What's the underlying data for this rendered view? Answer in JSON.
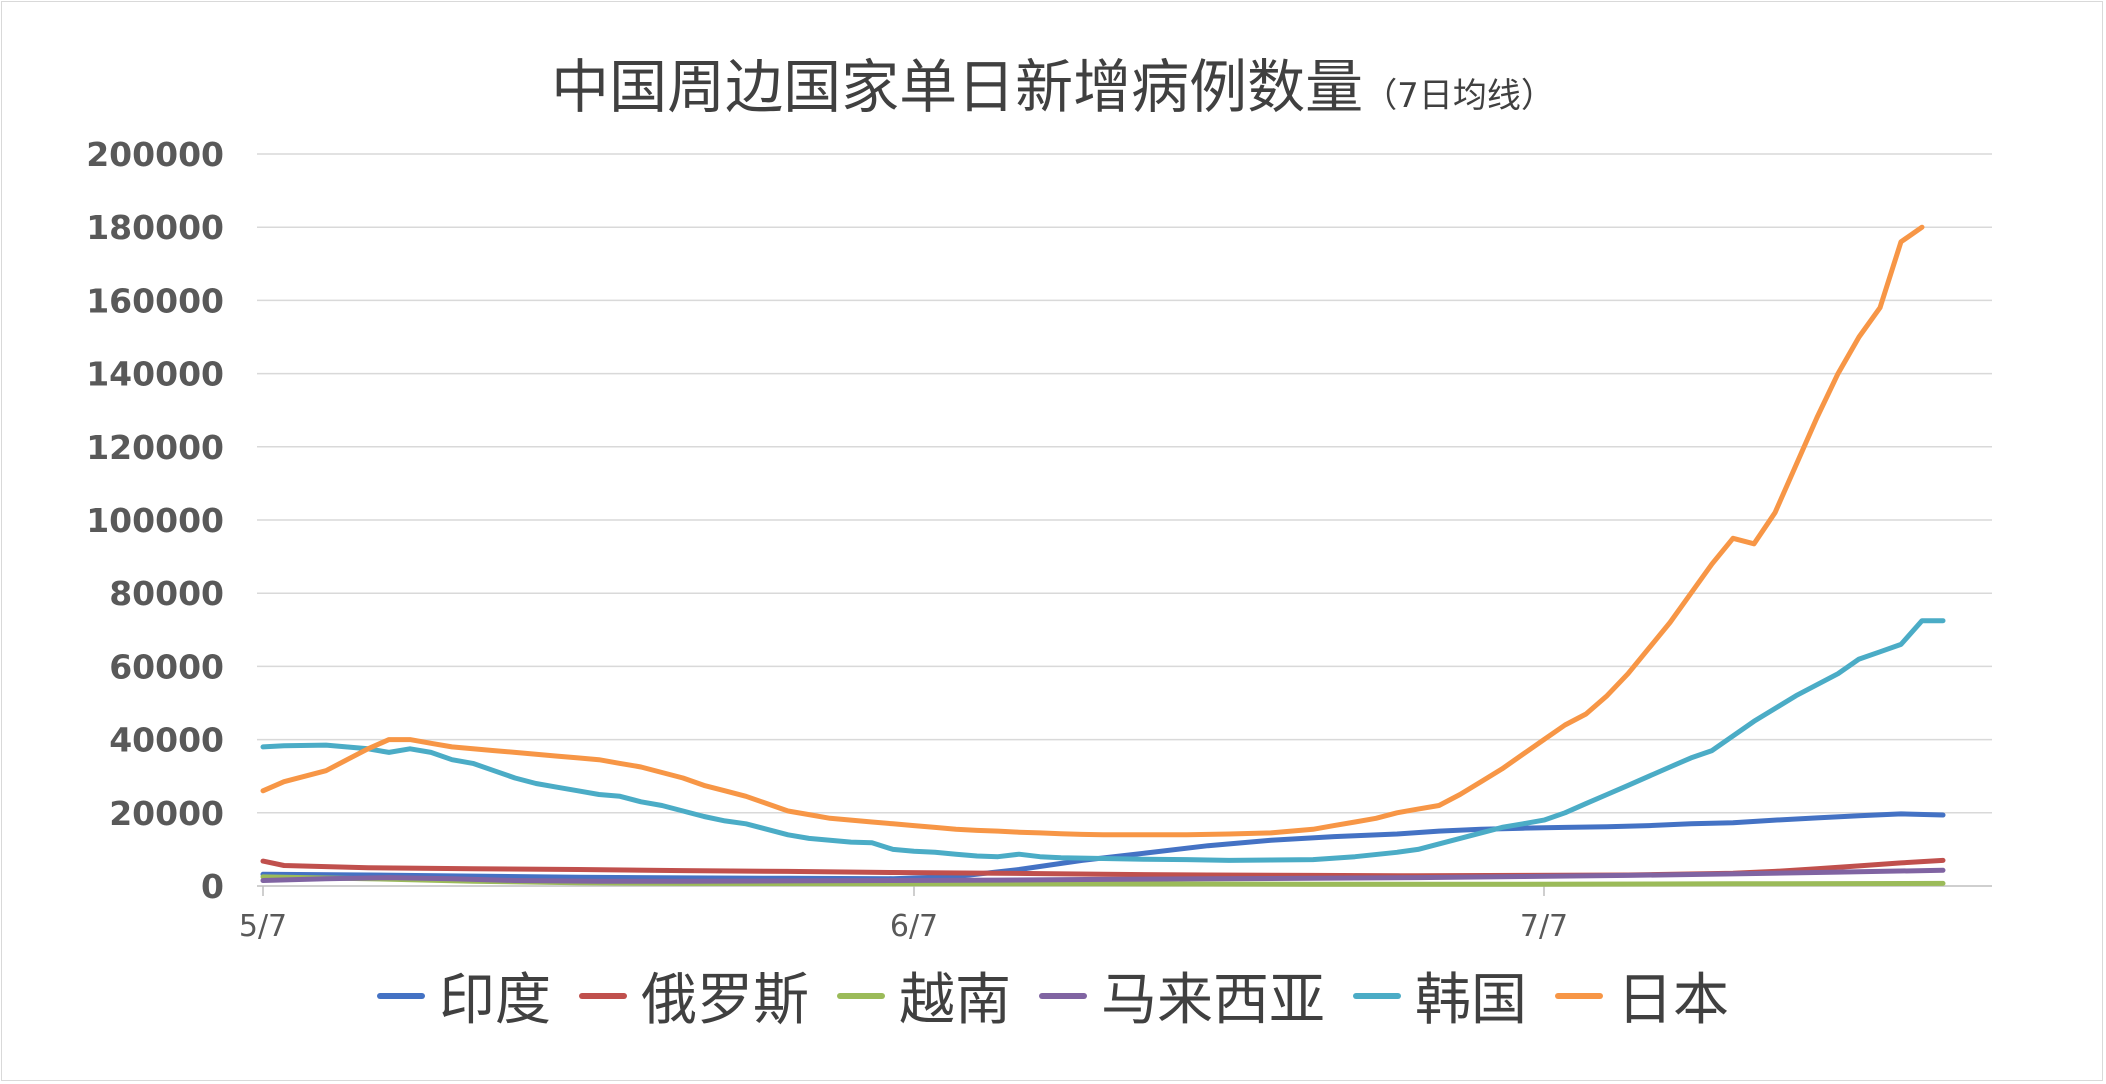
{
  "chart_data": {
    "type": "line",
    "title": "中国周边国家单日新增病例数量",
    "subtitle": "（7日均线）",
    "xlabel": "",
    "ylabel": "",
    "ylim": [
      0,
      200000
    ],
    "yticks": [
      0,
      20000,
      40000,
      60000,
      80000,
      100000,
      120000,
      140000,
      160000,
      180000,
      200000
    ],
    "xticks": [
      "5/7",
      "6/7",
      "7/7"
    ],
    "x_start": "5/7",
    "x_days": 80,
    "grid": true,
    "legend": "bottom",
    "series": [
      {
        "name": "印度",
        "color": "#4472C4",
        "points": [
          [
            0,
            3200
          ],
          [
            5,
            3000
          ],
          [
            10,
            2700
          ],
          [
            15,
            2400
          ],
          [
            20,
            2200
          ],
          [
            25,
            2100
          ],
          [
            30,
            2000
          ],
          [
            33,
            2600
          ],
          [
            36,
            4500
          ],
          [
            39,
            7000
          ],
          [
            42,
            9000
          ],
          [
            45,
            11000
          ],
          [
            48,
            12500
          ],
          [
            51,
            13500
          ],
          [
            54,
            14200
          ],
          [
            56,
            15000
          ],
          [
            58,
            15500
          ],
          [
            60,
            15800
          ],
          [
            62,
            16000
          ],
          [
            64,
            16200
          ],
          [
            66,
            16500
          ],
          [
            68,
            17000
          ],
          [
            70,
            17300
          ],
          [
            72,
            18000
          ],
          [
            74,
            18600
          ],
          [
            76,
            19200
          ],
          [
            78,
            19700
          ],
          [
            80,
            19400
          ]
        ]
      },
      {
        "name": "俄罗斯",
        "color": "#C0504D",
        "points": [
          [
            0,
            6800
          ],
          [
            1,
            5600
          ],
          [
            5,
            5000
          ],
          [
            10,
            4700
          ],
          [
            15,
            4500
          ],
          [
            20,
            4200
          ],
          [
            25,
            4000
          ],
          [
            30,
            3700
          ],
          [
            35,
            3500
          ],
          [
            40,
            3200
          ],
          [
            45,
            3000
          ],
          [
            50,
            2900
          ],
          [
            55,
            2800
          ],
          [
            60,
            2900
          ],
          [
            65,
            3000
          ],
          [
            70,
            3500
          ],
          [
            72,
            4000
          ],
          [
            74,
            4700
          ],
          [
            76,
            5500
          ],
          [
            78,
            6300
          ],
          [
            80,
            7000
          ]
        ]
      },
      {
        "name": "越南",
        "color": "#9BBB59",
        "points": [
          [
            0,
            2500
          ],
          [
            5,
            2000
          ],
          [
            10,
            1300
          ],
          [
            15,
            900
          ],
          [
            20,
            700
          ],
          [
            30,
            600
          ],
          [
            40,
            600
          ],
          [
            50,
            500
          ],
          [
            60,
            500
          ],
          [
            70,
            600
          ],
          [
            80,
            700
          ]
        ]
      },
      {
        "name": "马来西亚",
        "color": "#8064A2",
        "points": [
          [
            0,
            1500
          ],
          [
            3,
            2000
          ],
          [
            6,
            2300
          ],
          [
            9,
            2000
          ],
          [
            12,
            1500
          ],
          [
            16,
            1300
          ],
          [
            20,
            1300
          ],
          [
            25,
            1400
          ],
          [
            30,
            1500
          ],
          [
            35,
            1600
          ],
          [
            40,
            1800
          ],
          [
            45,
            2000
          ],
          [
            50,
            2100
          ],
          [
            55,
            2300
          ],
          [
            60,
            2600
          ],
          [
            65,
            2900
          ],
          [
            70,
            3300
          ],
          [
            75,
            3800
          ],
          [
            80,
            4300
          ]
        ]
      },
      {
        "name": "韩国",
        "color": "#4BACC6",
        "points": [
          [
            0,
            38000
          ],
          [
            1,
            38300
          ],
          [
            3,
            38500
          ],
          [
            5,
            37500
          ],
          [
            6,
            36500
          ],
          [
            7,
            37500
          ],
          [
            8,
            36500
          ],
          [
            9,
            34500
          ],
          [
            10,
            33500
          ],
          [
            11,
            31500
          ],
          [
            12,
            29500
          ],
          [
            13,
            28000
          ],
          [
            14,
            27000
          ],
          [
            15,
            26000
          ],
          [
            16,
            25000
          ],
          [
            17,
            24500
          ],
          [
            18,
            23000
          ],
          [
            19,
            22000
          ],
          [
            20,
            20500
          ],
          [
            21,
            19000
          ],
          [
            22,
            17800
          ],
          [
            23,
            17000
          ],
          [
            24,
            15500
          ],
          [
            25,
            14000
          ],
          [
            26,
            13000
          ],
          [
            27,
            12500
          ],
          [
            28,
            12000
          ],
          [
            29,
            11800
          ],
          [
            30,
            10000
          ],
          [
            31,
            9500
          ],
          [
            32,
            9200
          ],
          [
            33,
            8700
          ],
          [
            34,
            8200
          ],
          [
            35,
            8000
          ],
          [
            36,
            8700
          ],
          [
            37,
            8000
          ],
          [
            38,
            7700
          ],
          [
            40,
            7500
          ],
          [
            42,
            7300
          ],
          [
            44,
            7200
          ],
          [
            46,
            7000
          ],
          [
            48,
            7100
          ],
          [
            50,
            7200
          ],
          [
            52,
            8000
          ],
          [
            54,
            9200
          ],
          [
            55,
            10000
          ],
          [
            56,
            11500
          ],
          [
            57,
            13000
          ],
          [
            58,
            14500
          ],
          [
            59,
            16000
          ],
          [
            60,
            17000
          ],
          [
            61,
            18000
          ],
          [
            62,
            20000
          ],
          [
            63,
            22500
          ],
          [
            64,
            25000
          ],
          [
            65,
            27500
          ],
          [
            66,
            30000
          ],
          [
            67,
            32500
          ],
          [
            68,
            35000
          ],
          [
            69,
            37000
          ],
          [
            70,
            41000
          ],
          [
            71,
            45000
          ],
          [
            72,
            48500
          ],
          [
            73,
            52000
          ],
          [
            74,
            55000
          ],
          [
            75,
            58000
          ],
          [
            76,
            62000
          ],
          [
            77,
            64000
          ],
          [
            78,
            66000
          ],
          [
            79,
            72500
          ],
          [
            80,
            72500
          ]
        ]
      },
      {
        "name": "日本",
        "color": "#F79646",
        "points": [
          [
            0,
            26000
          ],
          [
            1,
            28500
          ],
          [
            2,
            30000
          ],
          [
            3,
            31500
          ],
          [
            4,
            34500
          ],
          [
            5,
            37500
          ],
          [
            6,
            40000
          ],
          [
            7,
            40000
          ],
          [
            8,
            39000
          ],
          [
            9,
            38000
          ],
          [
            10,
            37500
          ],
          [
            11,
            37000
          ],
          [
            12,
            36500
          ],
          [
            13,
            36000
          ],
          [
            14,
            35500
          ],
          [
            15,
            35000
          ],
          [
            16,
            34500
          ],
          [
            17,
            33500
          ],
          [
            18,
            32500
          ],
          [
            19,
            31000
          ],
          [
            20,
            29500
          ],
          [
            21,
            27500
          ],
          [
            22,
            26000
          ],
          [
            23,
            24500
          ],
          [
            24,
            22500
          ],
          [
            25,
            20500
          ],
          [
            26,
            19500
          ],
          [
            27,
            18500
          ],
          [
            28,
            18000
          ],
          [
            29,
            17500
          ],
          [
            30,
            17000
          ],
          [
            31,
            16500
          ],
          [
            32,
            16000
          ],
          [
            33,
            15500
          ],
          [
            34,
            15200
          ],
          [
            35,
            15000
          ],
          [
            36,
            14700
          ],
          [
            37,
            14500
          ],
          [
            38,
            14300
          ],
          [
            39,
            14100
          ],
          [
            40,
            14000
          ],
          [
            42,
            14000
          ],
          [
            44,
            14000
          ],
          [
            46,
            14200
          ],
          [
            48,
            14500
          ],
          [
            50,
            15500
          ],
          [
            51,
            16500
          ],
          [
            52,
            17500
          ],
          [
            53,
            18500
          ],
          [
            54,
            20000
          ],
          [
            55,
            21000
          ],
          [
            56,
            22000
          ],
          [
            57,
            25000
          ],
          [
            58,
            28500
          ],
          [
            59,
            32000
          ],
          [
            60,
            36000
          ],
          [
            61,
            40000
          ],
          [
            62,
            44000
          ],
          [
            63,
            47000
          ],
          [
            64,
            52000
          ],
          [
            65,
            58000
          ],
          [
            66,
            65000
          ],
          [
            67,
            72000
          ],
          [
            68,
            80000
          ],
          [
            69,
            88000
          ],
          [
            70,
            95000
          ],
          [
            71,
            93500
          ],
          [
            72,
            102000
          ],
          [
            73,
            115000
          ],
          [
            74,
            128000
          ],
          [
            75,
            140000
          ],
          [
            76,
            150000
          ],
          [
            77,
            158000
          ],
          [
            78,
            176000
          ],
          [
            79,
            180000
          ]
        ]
      }
    ]
  }
}
